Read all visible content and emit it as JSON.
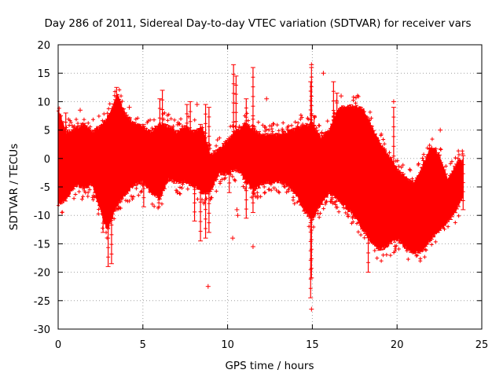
{
  "chart_data": {
    "type": "scatter",
    "title": "Day 286 of 2011, Sidereal Day-to-day VTEC variation (SDTVAR) for receiver vars",
    "xlabel": "GPS time / hours",
    "ylabel": "SDTVAR / TECUs",
    "xlim": [
      0,
      25
    ],
    "ylim": [
      -30,
      20
    ],
    "xticks": [
      0,
      5,
      10,
      15,
      20,
      25
    ],
    "yticks": [
      -30,
      -25,
      -20,
      -15,
      -10,
      -5,
      0,
      5,
      10,
      15,
      20
    ],
    "grid": true,
    "series_color": "#ff0000",
    "marker": "plus",
    "envelope": {
      "description": "dense band of data points; upper and lower bounds vs time",
      "points": [
        {
          "x": 0.0,
          "hi": 9.0,
          "lo": -8.5
        },
        {
          "x": 0.5,
          "hi": 5.0,
          "lo": -7.5
        },
        {
          "x": 1.0,
          "hi": 5.5,
          "lo": -5.0
        },
        {
          "x": 1.5,
          "hi": 6.5,
          "lo": -5.5
        },
        {
          "x": 2.0,
          "hi": 5.0,
          "lo": -5.0
        },
        {
          "x": 2.5,
          "hi": 6.0,
          "lo": -9.5
        },
        {
          "x": 2.9,
          "hi": 7.5,
          "lo": -13.0
        },
        {
          "x": 3.5,
          "hi": 11.5,
          "lo": -8.5
        },
        {
          "x": 4.0,
          "hi": 8.0,
          "lo": -6.5
        },
        {
          "x": 4.5,
          "hi": 6.5,
          "lo": -5.0
        },
        {
          "x": 5.0,
          "hi": 6.0,
          "lo": -4.5
        },
        {
          "x": 5.5,
          "hi": 5.0,
          "lo": -6.5
        },
        {
          "x": 6.0,
          "hi": 6.5,
          "lo": -7.5
        },
        {
          "x": 6.5,
          "hi": 6.0,
          "lo": -4.0
        },
        {
          "x": 7.0,
          "hi": 5.0,
          "lo": -4.5
        },
        {
          "x": 7.5,
          "hi": 6.0,
          "lo": -4.5
        },
        {
          "x": 8.0,
          "hi": 5.0,
          "lo": -5.0
        },
        {
          "x": 8.5,
          "hi": 6.0,
          "lo": -6.5
        },
        {
          "x": 9.0,
          "hi": 1.0,
          "lo": -6.0
        },
        {
          "x": 9.5,
          "hi": 2.0,
          "lo": -3.0
        },
        {
          "x": 10.0,
          "hi": 3.5,
          "lo": -3.0
        },
        {
          "x": 10.5,
          "hi": 5.0,
          "lo": -2.0
        },
        {
          "x": 11.0,
          "hi": 6.5,
          "lo": -4.0
        },
        {
          "x": 11.5,
          "hi": 5.5,
          "lo": -6.0
        },
        {
          "x": 12.0,
          "hi": 4.5,
          "lo": -5.0
        },
        {
          "x": 12.5,
          "hi": 4.5,
          "lo": -4.5
        },
        {
          "x": 13.0,
          "hi": 4.5,
          "lo": -4.5
        },
        {
          "x": 13.5,
          "hi": 5.0,
          "lo": -5.0
        },
        {
          "x": 14.0,
          "hi": 5.5,
          "lo": -6.5
        },
        {
          "x": 14.5,
          "hi": 6.0,
          "lo": -9.5
        },
        {
          "x": 15.0,
          "hi": 6.5,
          "lo": -11.0
        },
        {
          "x": 15.5,
          "hi": 4.0,
          "lo": -8.5
        },
        {
          "x": 16.0,
          "hi": 5.5,
          "lo": -6.5
        },
        {
          "x": 16.5,
          "hi": 9.0,
          "lo": -7.5
        },
        {
          "x": 17.0,
          "hi": 9.5,
          "lo": -9.0
        },
        {
          "x": 17.5,
          "hi": 9.5,
          "lo": -10.5
        },
        {
          "x": 18.0,
          "hi": 9.0,
          "lo": -13.0
        },
        {
          "x": 18.5,
          "hi": 6.0,
          "lo": -15.0
        },
        {
          "x": 19.0,
          "hi": 3.0,
          "lo": -16.5
        },
        {
          "x": 19.5,
          "hi": 1.0,
          "lo": -15.5
        },
        {
          "x": 20.0,
          "hi": -1.5,
          "lo": -14.5
        },
        {
          "x": 20.5,
          "hi": -3.0,
          "lo": -16.0
        },
        {
          "x": 21.0,
          "hi": -4.0,
          "lo": -17.0
        },
        {
          "x": 21.5,
          "hi": -1.0,
          "lo": -16.5
        },
        {
          "x": 22.0,
          "hi": 2.5,
          "lo": -14.5
        },
        {
          "x": 22.5,
          "hi": 1.0,
          "lo": -13.0
        },
        {
          "x": 23.0,
          "hi": -3.5,
          "lo": -11.5
        },
        {
          "x": 23.5,
          "hi": -0.5,
          "lo": -9.5
        },
        {
          "x": 23.9,
          "hi": 0.0,
          "lo": -7.0
        }
      ]
    },
    "spikes": [
      {
        "x": 0.45,
        "hi": 8.0,
        "lo": -5.0
      },
      {
        "x": 2.65,
        "hi": 5.0,
        "lo": -13.0
      },
      {
        "x": 2.95,
        "hi": 6.0,
        "lo": -19.0
      },
      {
        "x": 3.15,
        "hi": 7.0,
        "lo": -18.5
      },
      {
        "x": 3.45,
        "hi": 12.5,
        "lo": -3.0
      },
      {
        "x": 5.05,
        "hi": 6.0,
        "lo": -8.5
      },
      {
        "x": 6.0,
        "hi": 10.5,
        "lo": -3.0
      },
      {
        "x": 6.15,
        "hi": 12.0,
        "lo": -5.0
      },
      {
        "x": 7.6,
        "hi": 9.5,
        "lo": -2.0
      },
      {
        "x": 7.8,
        "hi": 10.0,
        "lo": -4.0
      },
      {
        "x": 8.05,
        "hi": 5.0,
        "lo": -11.0
      },
      {
        "x": 8.4,
        "hi": 6.0,
        "lo": -14.5
      },
      {
        "x": 8.7,
        "hi": 9.5,
        "lo": -14.0
      },
      {
        "x": 8.9,
        "hi": 9.0,
        "lo": -13.0
      },
      {
        "x": 10.1,
        "hi": 2.5,
        "lo": -6.0
      },
      {
        "x": 10.35,
        "hi": 16.5,
        "lo": -2.0
      },
      {
        "x": 10.5,
        "hi": 14.5,
        "lo": -1.5
      },
      {
        "x": 11.1,
        "hi": 10.5,
        "lo": -10.5
      },
      {
        "x": 11.5,
        "hi": 16.0,
        "lo": -9.5
      },
      {
        "x": 14.9,
        "hi": 13.5,
        "lo": -24.5
      },
      {
        "x": 14.95,
        "hi": 16.0,
        "lo": -21.0
      },
      {
        "x": 15.1,
        "hi": 7.5,
        "lo": -9.0
      },
      {
        "x": 16.25,
        "hi": 13.5,
        "lo": -5.0
      },
      {
        "x": 16.45,
        "hi": 11.5,
        "lo": -7.5
      },
      {
        "x": 18.3,
        "hi": 5.5,
        "lo": -20.0
      },
      {
        "x": 19.8,
        "hi": 9.0,
        "lo": -3.0
      },
      {
        "x": 23.9,
        "hi": 0.5,
        "lo": -9.0
      }
    ],
    "outliers": [
      {
        "x": 8.85,
        "y": -22.5
      },
      {
        "x": 10.3,
        "y": -14.0
      },
      {
        "x": 10.6,
        "y": -10.0
      },
      {
        "x": 10.55,
        "y": -9.0
      },
      {
        "x": 11.5,
        "y": -15.5
      },
      {
        "x": 12.3,
        "y": 10.5
      },
      {
        "x": 14.95,
        "y": 16.5
      },
      {
        "x": 14.95,
        "y": -26.5
      },
      {
        "x": 15.65,
        "y": 15.0
      },
      {
        "x": 16.7,
        "y": 11.0
      },
      {
        "x": 19.8,
        "y": 10.0
      },
      {
        "x": 22.55,
        "y": 5.0
      },
      {
        "x": 1.3,
        "y": 8.5
      },
      {
        "x": 4.2,
        "y": 9.0
      },
      {
        "x": 8.2,
        "y": 9.5
      }
    ]
  }
}
